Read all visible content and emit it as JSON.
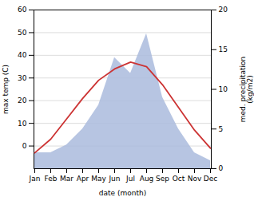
{
  "chart_data": {
    "type": "line",
    "xlabel": "date (month)",
    "ylabel": "max temp (C)",
    "y2label": "med. precipitation\n(kg/m2)",
    "categories": [
      "Jan",
      "Feb",
      "Mar",
      "Apr",
      "May",
      "Jun",
      "Jul",
      "Aug",
      "Sep",
      "Oct",
      "Nov",
      "Dec"
    ],
    "series": [
      {
        "type": "area",
        "axis": "y2",
        "color": "#aabbdd",
        "values": [
          2,
          2,
          3,
          5,
          8,
          14,
          12,
          17,
          9,
          5,
          2,
          1
        ]
      },
      {
        "type": "line",
        "color": "#cc3333",
        "values": [
          -3,
          3,
          12,
          21,
          29,
          34,
          37,
          35,
          27,
          17,
          7,
          -1
        ]
      }
    ],
    "ylim": [
      -10,
      60
    ],
    "yticks": [
      0,
      10,
      20,
      30,
      40,
      50,
      60
    ],
    "y2lim": [
      0,
      20
    ],
    "y2ticks": [
      0,
      5,
      10,
      15,
      20
    ],
    "grid": true
  }
}
